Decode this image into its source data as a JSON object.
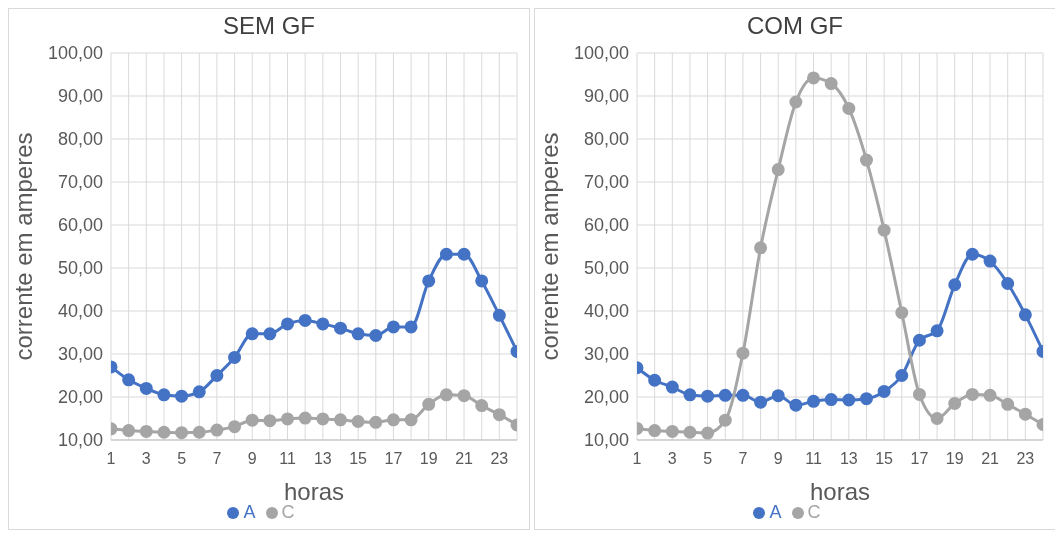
{
  "chart_data": [
    {
      "type": "line",
      "title": "SEM GF",
      "xlabel": "horas",
      "ylabel": "corrente em amperes",
      "x": [
        1,
        2,
        3,
        4,
        5,
        6,
        7,
        8,
        9,
        10,
        11,
        12,
        13,
        14,
        15,
        16,
        17,
        18,
        19,
        20,
        21,
        22,
        23,
        24
      ],
      "series": [
        {
          "name": "A",
          "color": "#4472c4",
          "values": [
            27,
            24,
            22,
            20.5,
            20.2,
            21.2,
            25,
            29.2,
            34.7,
            34.7,
            37,
            37.8,
            37,
            36,
            34.7,
            34.3,
            36.3,
            36.3,
            47,
            53.2,
            53.2,
            47,
            39,
            30.6
          ]
        },
        {
          "name": "C",
          "color": "#a5a5a5",
          "values": [
            12.6,
            12.2,
            12,
            11.8,
            11.7,
            11.8,
            12.3,
            13.1,
            14.6,
            14.5,
            14.9,
            15.1,
            14.9,
            14.7,
            14.3,
            14.1,
            14.7,
            14.7,
            18.3,
            20.5,
            20.3,
            18,
            15.9,
            13.5
          ]
        }
      ],
      "xlim": [
        1,
        24
      ],
      "xticks": [
        1,
        {
          "value": 2,
          "label": null
        },
        3,
        {
          "value": 4,
          "label": null
        },
        5,
        {
          "value": 6,
          "label": null
        },
        7,
        {
          "value": 8,
          "label": null
        },
        9,
        {
          "value": 10,
          "label": null
        },
        11,
        {
          "value": 12,
          "label": null
        },
        13,
        {
          "value": 14,
          "label": null
        },
        15,
        {
          "value": 16,
          "label": null
        },
        17,
        {
          "value": 18,
          "label": null
        },
        19,
        {
          "value": 20,
          "label": null
        },
        21,
        {
          "value": 22,
          "label": null
        },
        23,
        {
          "value": 24,
          "label": null
        }
      ],
      "ylim": [
        10,
        100
      ],
      "yticks": [
        {
          "value": 10,
          "label": "10,00"
        },
        {
          "value": 20,
          "label": "20,00"
        },
        {
          "value": 30,
          "label": "30,00"
        },
        {
          "value": 40,
          "label": "40,00"
        },
        {
          "value": 50,
          "label": "50,00"
        },
        {
          "value": 60,
          "label": "60,00"
        },
        {
          "value": 70,
          "label": "70,00"
        },
        {
          "value": 80,
          "label": "80,00"
        },
        {
          "value": 90,
          "label": "90,00"
        },
        {
          "value": 100,
          "label": "100,00"
        }
      ],
      "grid": true,
      "legend": "bottom",
      "marker": "circle",
      "line_style": "solid"
    },
    {
      "type": "line",
      "title": "COM GF",
      "xlabel": "horas",
      "ylabel": "corrente em amperes",
      "x": [
        1,
        2,
        3,
        4,
        5,
        6,
        7,
        8,
        9,
        10,
        11,
        12,
        13,
        14,
        15,
        16,
        17,
        18,
        19,
        20,
        21,
        22,
        23,
        24
      ],
      "series": [
        {
          "name": "A",
          "color": "#4472c4",
          "values": [
            26.8,
            23.9,
            22.3,
            20.5,
            20.2,
            20.4,
            20.4,
            18.8,
            20.3,
            18.1,
            19,
            19.4,
            19.3,
            19.6,
            21.3,
            25,
            33.2,
            35.4,
            46.1,
            53.2,
            51.6,
            46.4,
            39.1,
            30.6
          ]
        },
        {
          "name": "C",
          "color": "#a5a5a5",
          "values": [
            12.7,
            12.2,
            12,
            11.8,
            11.6,
            14.6,
            30.2,
            54.7,
            72.9,
            88.6,
            94.2,
            92.9,
            87.1,
            75.1,
            58.8,
            39.6,
            20.6,
            15,
            18.5,
            20.6,
            20.4,
            18.3,
            16,
            13.6
          ]
        }
      ],
      "xlim": [
        1,
        24
      ],
      "xticks": [
        1,
        {
          "value": 2,
          "label": null
        },
        3,
        {
          "value": 4,
          "label": null
        },
        5,
        {
          "value": 6,
          "label": null
        },
        7,
        {
          "value": 8,
          "label": null
        },
        9,
        {
          "value": 10,
          "label": null
        },
        11,
        {
          "value": 12,
          "label": null
        },
        13,
        {
          "value": 14,
          "label": null
        },
        15,
        {
          "value": 16,
          "label": null
        },
        17,
        {
          "value": 18,
          "label": null
        },
        19,
        {
          "value": 20,
          "label": null
        },
        21,
        {
          "value": 22,
          "label": null
        },
        23,
        {
          "value": 24,
          "label": null
        }
      ],
      "ylim": [
        10,
        100
      ],
      "yticks": [
        {
          "value": 10,
          "label": "10,00"
        },
        {
          "value": 20,
          "label": "20,00"
        },
        {
          "value": 30,
          "label": "30,00"
        },
        {
          "value": 40,
          "label": "40,00"
        },
        {
          "value": 50,
          "label": "50,00"
        },
        {
          "value": 60,
          "label": "60,00"
        },
        {
          "value": 70,
          "label": "70,00"
        },
        {
          "value": 80,
          "label": "80,00"
        },
        {
          "value": 90,
          "label": "90,00"
        },
        {
          "value": 100,
          "label": "100,00"
        }
      ],
      "grid": true,
      "legend": "bottom",
      "marker": "circle",
      "line_style": "solid"
    }
  ]
}
